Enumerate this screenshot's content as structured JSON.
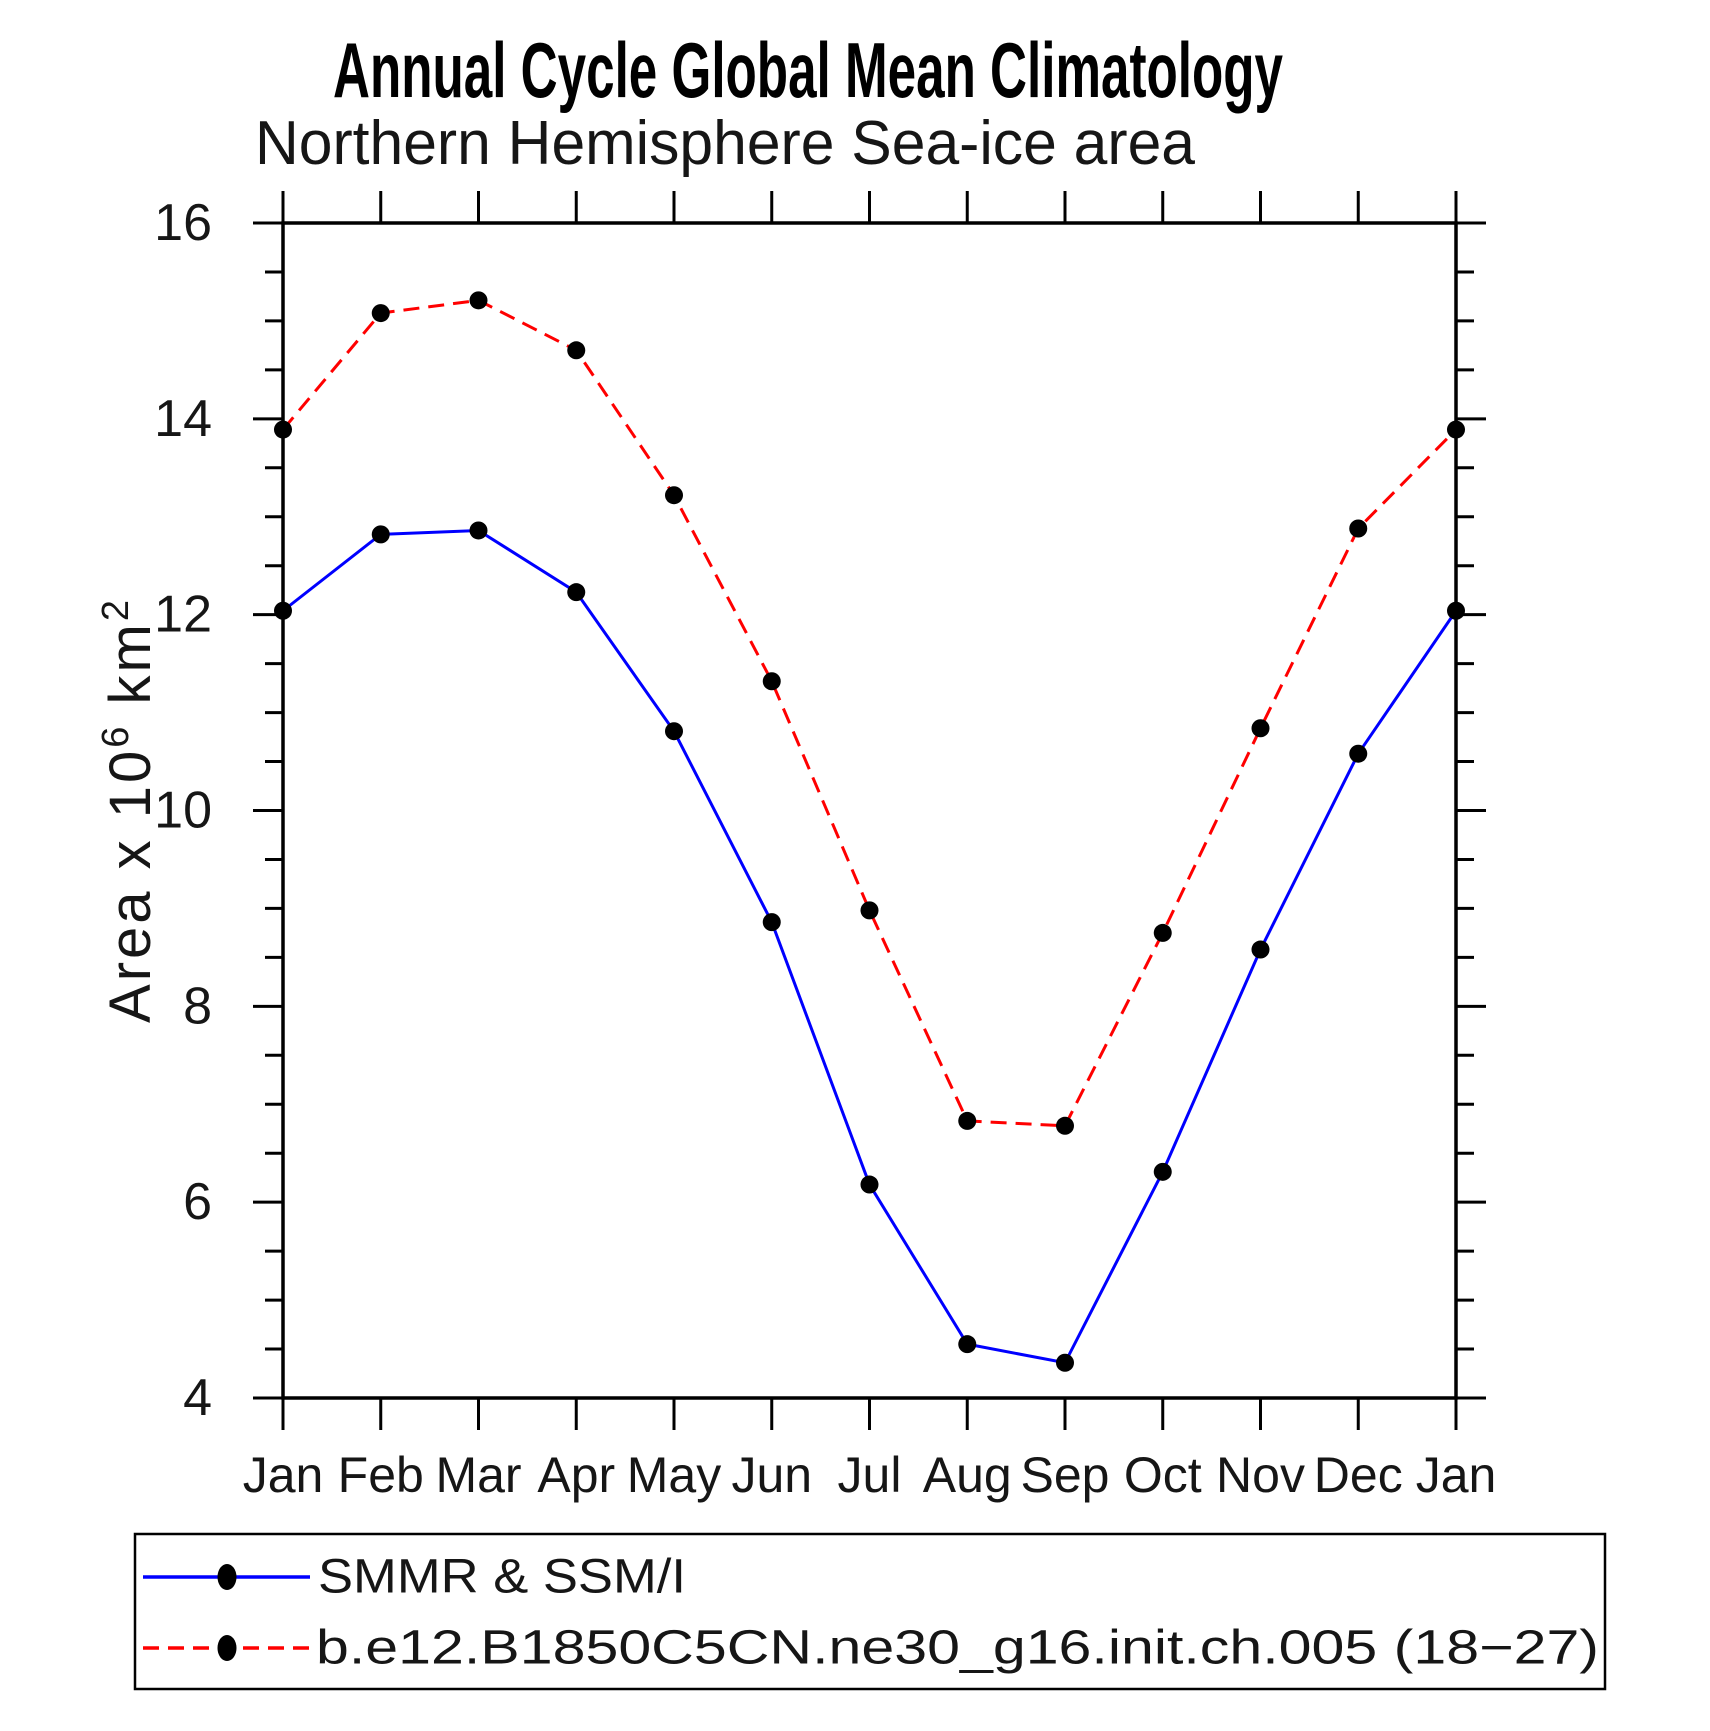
{
  "title": "Annual Cycle Global Mean Climatology",
  "subtitle": "Northern Hemisphere Sea-ice area",
  "y_axis": {
    "title_prefix": "Area x 10",
    "title_exponent": "6",
    "title_unit": " km",
    "title_unit_exponent": "2",
    "tick_labels": [
      "16",
      "14",
      "12",
      "10",
      "8",
      "6",
      "4"
    ],
    "tick_values": [
      16,
      14,
      12,
      10,
      8,
      6,
      4
    ],
    "minor_step": 0.5
  },
  "x_axis": {
    "labels": [
      "Jan",
      "Feb",
      "Mar",
      "Apr",
      "May",
      "Jun",
      "Jul",
      "Aug",
      "Sep",
      "Oct",
      "Nov",
      "Dec",
      "Jan"
    ]
  },
  "legend": {
    "items": [
      {
        "label": "SMMR & SSM/I"
      },
      {
        "label": "b.e12.B1850C5CN.ne30_g16.init.ch.005 (18−27)"
      }
    ]
  },
  "colors": {
    "observations": "#0000ff",
    "model": "#ff0000",
    "marker": "#000000",
    "axis": "#000000"
  },
  "chart_data": {
    "type": "line",
    "title": "Annual Cycle Global Mean Climatology",
    "subtitle": "Northern Hemisphere Sea-ice area",
    "ylabel": "Area x 10^6 km^2",
    "xlabel": "",
    "ylim": [
      4,
      16
    ],
    "grid": false,
    "legend_position": "bottom",
    "categories": [
      "Jan",
      "Feb",
      "Mar",
      "Apr",
      "May",
      "Jun",
      "Jul",
      "Aug",
      "Sep",
      "Oct",
      "Nov",
      "Dec",
      "Jan"
    ],
    "series": [
      {
        "name": "SMMR & SSM/I",
        "color": "#0000ff",
        "line_style": "solid",
        "marker": "filled-circle",
        "values": [
          12.04,
          12.82,
          12.86,
          12.23,
          10.81,
          8.86,
          6.18,
          4.55,
          4.36,
          6.31,
          8.58,
          10.58,
          12.04
        ]
      },
      {
        "name": "b.e12.B1850C5CN.ne30_g16.init.ch.005 (18−27)",
        "color": "#ff0000",
        "line_style": "dashed",
        "marker": "filled-circle",
        "values": [
          13.89,
          15.08,
          15.21,
          14.7,
          13.22,
          11.32,
          8.98,
          6.83,
          6.78,
          8.75,
          10.84,
          12.88,
          13.89
        ]
      }
    ]
  }
}
